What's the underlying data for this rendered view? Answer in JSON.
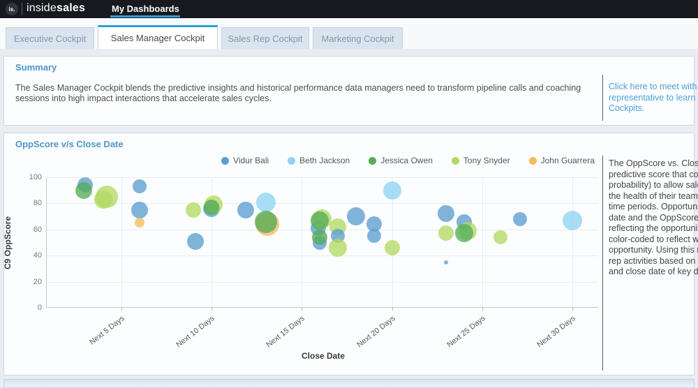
{
  "topbar": {
    "logo_abbr": "is.",
    "logo_light": "inside",
    "logo_bold": "sales",
    "nav_label": "My Dashboards"
  },
  "tabs": [
    {
      "label": "Executive Cockpit",
      "active": false
    },
    {
      "label": "Sales Manager Cockpit",
      "active": true
    },
    {
      "label": "Sales Rep Cockpit",
      "active": false
    },
    {
      "label": "Marketing Cockpit",
      "active": false
    }
  ],
  "summary": {
    "title": "Summary",
    "body": "The Sales Manager Cockpit blends the predictive insights and historical performance data managers need to transform pipeline calls and coaching sessions into high impact interactions that accelerate sales cycles.",
    "link_lines": [
      "Click here to meet with an",
      "representative to learn mo",
      "Cockpits."
    ]
  },
  "chart_section": {
    "title": "OppScore v/s Close Date",
    "description_lines": [
      "The OppScore vs. Close Da",
      "predictive score that corre",
      "probability) to allow sales",
      "the health of their teams'",
      "time periods. Opportunitie",
      "date and the OppScore, w",
      "reflecting the opportunity",
      "color-coded to reflect who",
      "opportunity. Using this rep",
      "rep activities based on the",
      "and close date of key deal"
    ],
    "chart_data": {
      "type": "scatter",
      "subtype": "bubble",
      "title": "OppScore v/s Close Date",
      "xlabel": "Close Date",
      "ylabel": "C9 OppScore",
      "ylim": [
        0,
        100
      ],
      "yticks": [
        0,
        20,
        40,
        60,
        80,
        100
      ],
      "categories": [
        "Next 5 Days",
        "Next 10 Days",
        "Next 15 Days",
        "Next 20 Days",
        "Next 25 Days",
        "Next 30 Days"
      ],
      "category_days": [
        5,
        10,
        15,
        20,
        25,
        30
      ],
      "grid": true,
      "legend_position": "top-right",
      "series": [
        {
          "key": "vidur",
          "name": "Vidur Bali",
          "color": "#5b9ecf"
        },
        {
          "key": "beth",
          "name": "Beth Jackson",
          "color": "#8ed3f2"
        },
        {
          "key": "jessica",
          "name": "Jessica Owen",
          "color": "#55ad57"
        },
        {
          "key": "tony",
          "name": "Tony Snyder",
          "color": "#b2d963"
        },
        {
          "key": "john",
          "name": "John Guarrera",
          "color": "#f4bb60"
        }
      ],
      "bubbles": [
        {
          "day": 3.0,
          "score": 94,
          "r": 11,
          "series": "vidur"
        },
        {
          "day": 2.9,
          "score": 90,
          "r": 12,
          "series": "jessica"
        },
        {
          "day": 4.2,
          "score": 85,
          "r": 16,
          "series": "tony"
        },
        {
          "day": 4.0,
          "score": 83,
          "r": 13,
          "series": "tony"
        },
        {
          "day": 6.0,
          "score": 93,
          "r": 10,
          "series": "vidur"
        },
        {
          "day": 6.0,
          "score": 75,
          "r": 12,
          "series": "vidur"
        },
        {
          "day": 6.0,
          "score": 65,
          "r": 7,
          "series": "john"
        },
        {
          "day": 10.0,
          "score": 76,
          "r": 12,
          "series": "vidur"
        },
        {
          "day": 10.1,
          "score": 79,
          "r": 13,
          "series": "tony"
        },
        {
          "day": 10.0,
          "score": 77,
          "r": 11,
          "series": "jessica"
        },
        {
          "day": 9.0,
          "score": 75,
          "r": 11,
          "series": "tony"
        },
        {
          "day": 9.1,
          "score": 51,
          "r": 12,
          "series": "vidur"
        },
        {
          "day": 11.9,
          "score": 75,
          "r": 12,
          "series": "vidur"
        },
        {
          "day": 13.0,
          "score": 81,
          "r": 14,
          "series": "beth"
        },
        {
          "day": 13.1,
          "score": 64,
          "r": 17,
          "series": "john"
        },
        {
          "day": 13.0,
          "score": 66,
          "r": 16,
          "series": "jessica"
        },
        {
          "day": 15.9,
          "score": 61,
          "r": 11,
          "series": "vidur"
        },
        {
          "day": 16.1,
          "score": 68,
          "r": 14,
          "series": "tony"
        },
        {
          "day": 16.0,
          "score": 67,
          "r": 13,
          "series": "jessica"
        },
        {
          "day": 16.0,
          "score": 50,
          "r": 10,
          "series": "vidur"
        },
        {
          "day": 16.0,
          "score": 54,
          "r": 11,
          "series": "jessica"
        },
        {
          "day": 17.0,
          "score": 62,
          "r": 12,
          "series": "tony"
        },
        {
          "day": 17.0,
          "score": 55,
          "r": 10,
          "series": "vidur"
        },
        {
          "day": 17.0,
          "score": 46,
          "r": 13,
          "series": "tony"
        },
        {
          "day": 18.0,
          "score": 70,
          "r": 13,
          "series": "vidur"
        },
        {
          "day": 19.0,
          "score": 64,
          "r": 11,
          "series": "vidur"
        },
        {
          "day": 19.0,
          "score": 55,
          "r": 10,
          "series": "vidur"
        },
        {
          "day": 20.0,
          "score": 90,
          "r": 13,
          "series": "beth"
        },
        {
          "day": 20.0,
          "score": 46,
          "r": 11,
          "series": "tony"
        },
        {
          "day": 23.0,
          "score": 72,
          "r": 12,
          "series": "vidur"
        },
        {
          "day": 23.0,
          "score": 57,
          "r": 11,
          "series": "tony"
        },
        {
          "day": 24.0,
          "score": 66,
          "r": 11,
          "series": "vidur"
        },
        {
          "day": 24.2,
          "score": 59,
          "r": 13,
          "series": "tony"
        },
        {
          "day": 24.0,
          "score": 57,
          "r": 13,
          "series": "jessica"
        },
        {
          "day": 23.0,
          "score": 35,
          "r": 3,
          "series": "vidur"
        },
        {
          "day": 26.0,
          "score": 54,
          "r": 10,
          "series": "tony"
        },
        {
          "day": 27.1,
          "score": 68,
          "r": 10,
          "series": "vidur"
        },
        {
          "day": 30.0,
          "score": 67,
          "r": 14,
          "series": "beth"
        }
      ]
    }
  },
  "colors": {
    "accent": "#2d9fd8",
    "section_title": "#4a96cb",
    "link": "#4da0d6",
    "topbar_bg": "#17191e",
    "tab_bg": "#d9e4ee",
    "tab_text": "#8496ac",
    "divider": "#5a5a5a"
  }
}
